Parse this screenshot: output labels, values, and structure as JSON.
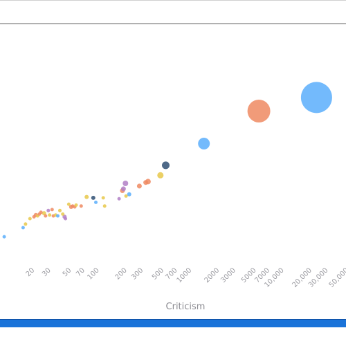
{
  "chart_data": {
    "type": "scatter",
    "title": "",
    "xlabel": "Criticism",
    "ylabel": "",
    "xscale": "log",
    "xlim": [
      9,
      50000
    ],
    "xticks": [
      "20",
      "30",
      "50",
      "70",
      "100",
      "200",
      "300",
      "500",
      "700",
      "1000",
      "2000",
      "3000",
      "5000",
      "7000",
      "10,000",
      "20,000",
      "30,000",
      "50,000"
    ],
    "xtick_values": [
      20,
      30,
      50,
      70,
      100,
      200,
      300,
      500,
      700,
      1000,
      2000,
      3000,
      5000,
      7000,
      10000,
      20000,
      30000,
      50000
    ],
    "grid": false,
    "legend": "none",
    "colors": {
      "blue": "#5aaefc",
      "orange": "#ef8a62",
      "yellow": "#e8c84a",
      "purple": "#b27fc6",
      "navy": "#2f4f73"
    },
    "points": [
      {
        "x": 10,
        "y": 1.5,
        "size": 5,
        "color": "blue"
      },
      {
        "x": 16,
        "y": 6.5,
        "size": 5,
        "color": "blue"
      },
      {
        "x": 17,
        "y": 8.5,
        "size": 5,
        "color": "yellow"
      },
      {
        "x": 19,
        "y": 11.5,
        "size": 5,
        "color": "yellow"
      },
      {
        "x": 21,
        "y": 12.5,
        "size": 5,
        "color": "orange"
      },
      {
        "x": 22,
        "y": 13.5,
        "size": 6,
        "color": "orange"
      },
      {
        "x": 23,
        "y": 13.0,
        "size": 5,
        "color": "yellow"
      },
      {
        "x": 24,
        "y": 14.0,
        "size": 5,
        "color": "orange"
      },
      {
        "x": 25,
        "y": 15.0,
        "size": 5,
        "color": "orange"
      },
      {
        "x": 27,
        "y": 14.5,
        "size": 6,
        "color": "yellow"
      },
      {
        "x": 28,
        "y": 13.0,
        "size": 5,
        "color": "orange"
      },
      {
        "x": 30,
        "y": 16.0,
        "size": 5,
        "color": "purple"
      },
      {
        "x": 31,
        "y": 13.5,
        "size": 5,
        "color": "yellow"
      },
      {
        "x": 33,
        "y": 16.5,
        "size": 5,
        "color": "orange"
      },
      {
        "x": 34,
        "y": 13.0,
        "size": 5,
        "color": "orange"
      },
      {
        "x": 36,
        "y": 13.5,
        "size": 5,
        "color": "yellow"
      },
      {
        "x": 38,
        "y": 13.0,
        "size": 5,
        "color": "blue"
      },
      {
        "x": 40,
        "y": 16.0,
        "size": 5,
        "color": "yellow"
      },
      {
        "x": 43,
        "y": 14.0,
        "size": 5,
        "color": "yellow"
      },
      {
        "x": 45,
        "y": 12.5,
        "size": 6,
        "color": "purple"
      },
      {
        "x": 46,
        "y": 11.5,
        "size": 5,
        "color": "purple"
      },
      {
        "x": 50,
        "y": 19.5,
        "size": 5,
        "color": "yellow"
      },
      {
        "x": 53,
        "y": 18.0,
        "size": 6,
        "color": "orange"
      },
      {
        "x": 55,
        "y": 18.5,
        "size": 5,
        "color": "orange"
      },
      {
        "x": 58,
        "y": 18.0,
        "size": 5,
        "color": "orange"
      },
      {
        "x": 60,
        "y": 19.0,
        "size": 5,
        "color": "yellow"
      },
      {
        "x": 68,
        "y": 18.5,
        "size": 5,
        "color": "orange"
      },
      {
        "x": 78,
        "y": 23.5,
        "size": 6,
        "color": "yellow"
      },
      {
        "x": 92,
        "y": 23.0,
        "size": 6,
        "color": "navy"
      },
      {
        "x": 98,
        "y": 20.5,
        "size": 5,
        "color": "blue"
      },
      {
        "x": 118,
        "y": 23.0,
        "size": 5,
        "color": "yellow"
      },
      {
        "x": 122,
        "y": 18.5,
        "size": 5,
        "color": "yellow"
      },
      {
        "x": 175,
        "y": 22.5,
        "size": 5,
        "color": "purple"
      },
      {
        "x": 190,
        "y": 27.0,
        "size": 7,
        "color": "orange"
      },
      {
        "x": 195,
        "y": 28.0,
        "size": 7,
        "color": "purple"
      },
      {
        "x": 205,
        "y": 31.0,
        "size": 8,
        "color": "purple"
      },
      {
        "x": 208,
        "y": 24.0,
        "size": 5,
        "color": "yellow"
      },
      {
        "x": 225,
        "y": 25.0,
        "size": 6,
        "color": "blue"
      },
      {
        "x": 290,
        "y": 29.5,
        "size": 7,
        "color": "orange"
      },
      {
        "x": 340,
        "y": 31.5,
        "size": 7,
        "color": "orange"
      },
      {
        "x": 360,
        "y": 32.0,
        "size": 8,
        "color": "orange"
      },
      {
        "x": 490,
        "y": 35.5,
        "size": 9,
        "color": "yellow"
      },
      {
        "x": 560,
        "y": 41.0,
        "size": 11,
        "color": "navy"
      },
      {
        "x": 1450,
        "y": 53.0,
        "size": 17,
        "color": "blue"
      },
      {
        "x": 5700,
        "y": 71.0,
        "size": 33,
        "color": "orange"
      },
      {
        "x": 24000,
        "y": 78.5,
        "size": 45,
        "color": "blue"
      }
    ]
  }
}
